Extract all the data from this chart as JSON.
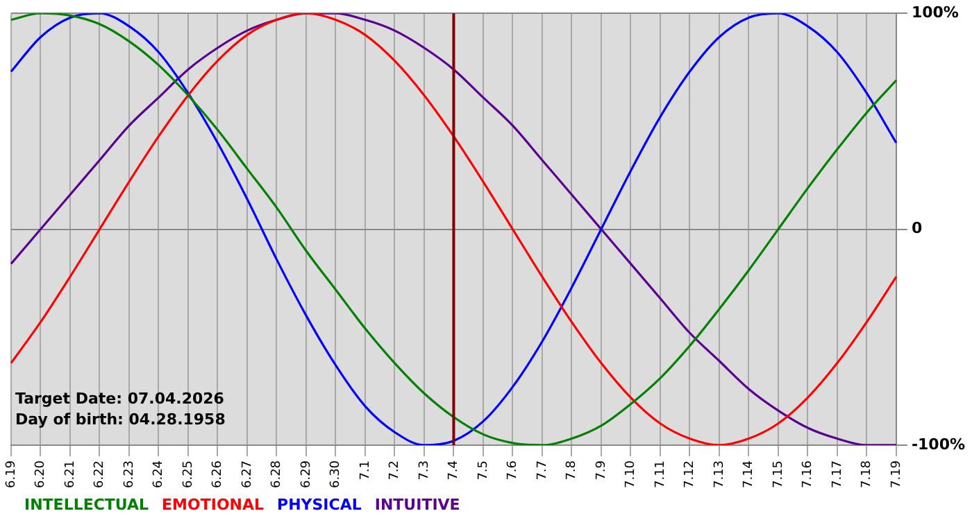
{
  "chart_data": {
    "type": "line",
    "categories": [
      "6.19",
      "6.20",
      "6.21",
      "6.22",
      "6.23",
      "6.24",
      "6.25",
      "6.26",
      "6.27",
      "6.28",
      "6.29",
      "6.30",
      "7.1",
      "7.2",
      "7.3",
      "7.4",
      "7.5",
      "7.6",
      "7.7",
      "7.8",
      "7.9",
      "7.10",
      "7.11",
      "7.12",
      "7.13",
      "7.14",
      "7.15",
      "7.16",
      "7.17",
      "7.18",
      "7.19"
    ],
    "series": [
      {
        "name": "INTELLECTUAL",
        "color": "#008000",
        "values": [
          97,
          100,
          99,
          95,
          87,
          76,
          62,
          46,
          28,
          10,
          -10,
          -28,
          -46,
          -62,
          -76,
          -87,
          -95,
          -99,
          -100,
          -97,
          -91,
          -81,
          -69,
          -54,
          -37,
          -19,
          0,
          19,
          37,
          54,
          69
        ]
      },
      {
        "name": "EMOTIONAL",
        "color": "#ff0000",
        "values": [
          -62,
          -43,
          -22,
          0,
          22,
          43,
          62,
          78,
          90,
          97,
          100,
          97,
          90,
          78,
          62,
          43,
          22,
          0,
          -22,
          -43,
          -62,
          -78,
          -90,
          -97,
          -100,
          -97,
          -90,
          -78,
          -62,
          -43,
          -22
        ]
      },
      {
        "name": "PHYSICAL",
        "color": "#0000ff",
        "values": [
          73,
          89,
          98,
          100,
          94,
          82,
          63,
          40,
          14,
          -14,
          -40,
          -63,
          -82,
          -94,
          -100,
          -98,
          -89,
          -73,
          -52,
          -27,
          0,
          27,
          52,
          73,
          89,
          98,
          100,
          94,
          82,
          63,
          40
        ]
      },
      {
        "name": "INTUITIVE",
        "color": "#5a0090",
        "values": [
          -16,
          0,
          16,
          32,
          48,
          61,
          74,
          84,
          92,
          97,
          100,
          100,
          97,
          92,
          84,
          74,
          61,
          48,
          32,
          16,
          0,
          -16,
          -32,
          -48,
          -61,
          -74,
          -84,
          -92,
          -97,
          -100,
          -100
        ]
      }
    ],
    "ylim": [
      -100,
      100
    ],
    "yticks": [
      {
        "value": 100,
        "label": "100%"
      },
      0,
      {
        "value": -100,
        "label": "-100%"
      }
    ],
    "grid": true,
    "legend": "bottom left",
    "marker": "none",
    "line_style": "solid",
    "ref_lines": [
      {
        "axis": "x",
        "value": "7.4",
        "color": "#800000"
      }
    ],
    "annotations": [
      "Target Date: 07.04.2026",
      "Day of birth: 04.28.1958"
    ]
  }
}
